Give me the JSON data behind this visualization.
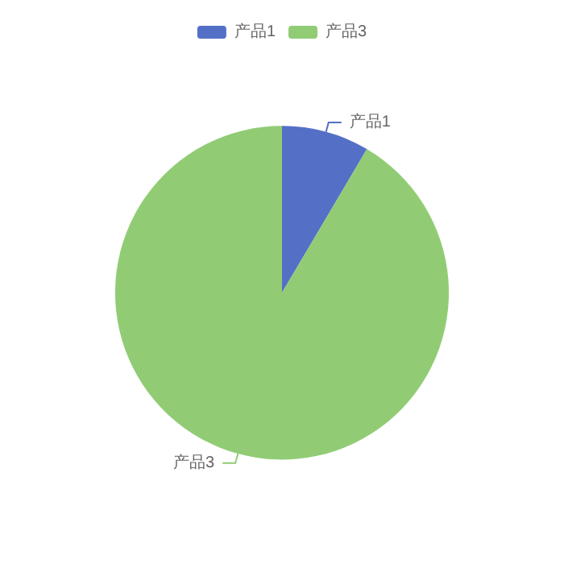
{
  "chart_data": {
    "type": "pie",
    "categories": [
      "产品1",
      "产品3"
    ],
    "values": [
      8.5,
      91.5
    ],
    "colors": [
      "#5470c6",
      "#91cc75"
    ],
    "legend": "top"
  }
}
